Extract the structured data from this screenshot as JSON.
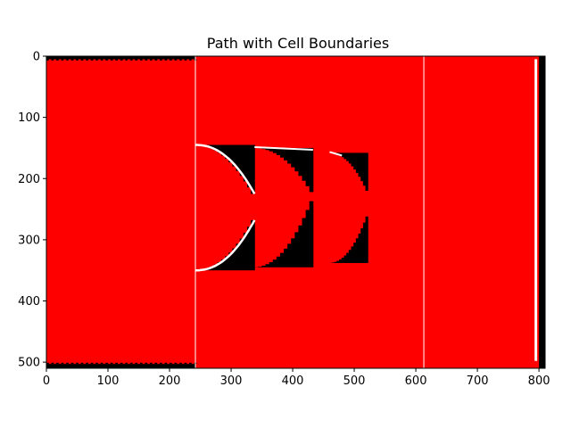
{
  "chart_data": {
    "type": "heatmap",
    "title": "Path with Cell Boundaries",
    "xlabel": "",
    "ylabel": "",
    "xlim": [
      0,
      810
    ],
    "ylim": [
      510,
      0
    ],
    "y_inverted": true,
    "xticks": [
      0,
      100,
      200,
      300,
      400,
      500,
      600,
      700,
      800
    ],
    "yticks": [
      0,
      100,
      200,
      300,
      400,
      500
    ],
    "grid": false,
    "colors": {
      "background": "#ff0000",
      "obstacle": "#000000",
      "path": "#ffffff",
      "cell_boundary": "#ffffff"
    },
    "cell_boundaries_x": [
      242,
      613
    ],
    "image_extent": {
      "x": [
        0,
        810
      ],
      "y": [
        0,
        510
      ]
    },
    "top_band": {
      "y": [
        0,
        5
      ],
      "x": [
        0,
        242
      ]
    },
    "bottom_band": {
      "y": [
        503,
        510
      ],
      "x": [
        0,
        242
      ]
    },
    "right_band": {
      "x": [
        800,
        810
      ],
      "y": [
        0,
        510
      ]
    },
    "path_right_edge": {
      "x": 795,
      "y": [
        5,
        498
      ]
    },
    "obstacles": [
      {
        "name": "arc-1-top",
        "x_range": [
          242,
          338
        ],
        "y_top": 145,
        "y_inner": 225,
        "curve": "concave"
      },
      {
        "name": "arc-1-bottom",
        "x_range": [
          242,
          338
        ],
        "y_bottom": 350,
        "y_inner": 268,
        "curve": "concave"
      },
      {
        "name": "arc-2-top",
        "x_range": [
          338,
          433
        ],
        "y_top": 150,
        "y_inner": 222,
        "curve": "concave"
      },
      {
        "name": "arc-2-bottom",
        "x_range": [
          338,
          433
        ],
        "y_bottom": 345,
        "y_inner": 237,
        "curve": "concave"
      },
      {
        "name": "arc-3-top",
        "x_range": [
          460,
          522
        ],
        "y_top": 158,
        "y_inner": 220,
        "curve": "concave"
      },
      {
        "name": "arc-3-bottom",
        "x_range": [
          460,
          522
        ],
        "y_bottom": 338,
        "y_inner": 262,
        "curve": "concave"
      }
    ]
  }
}
